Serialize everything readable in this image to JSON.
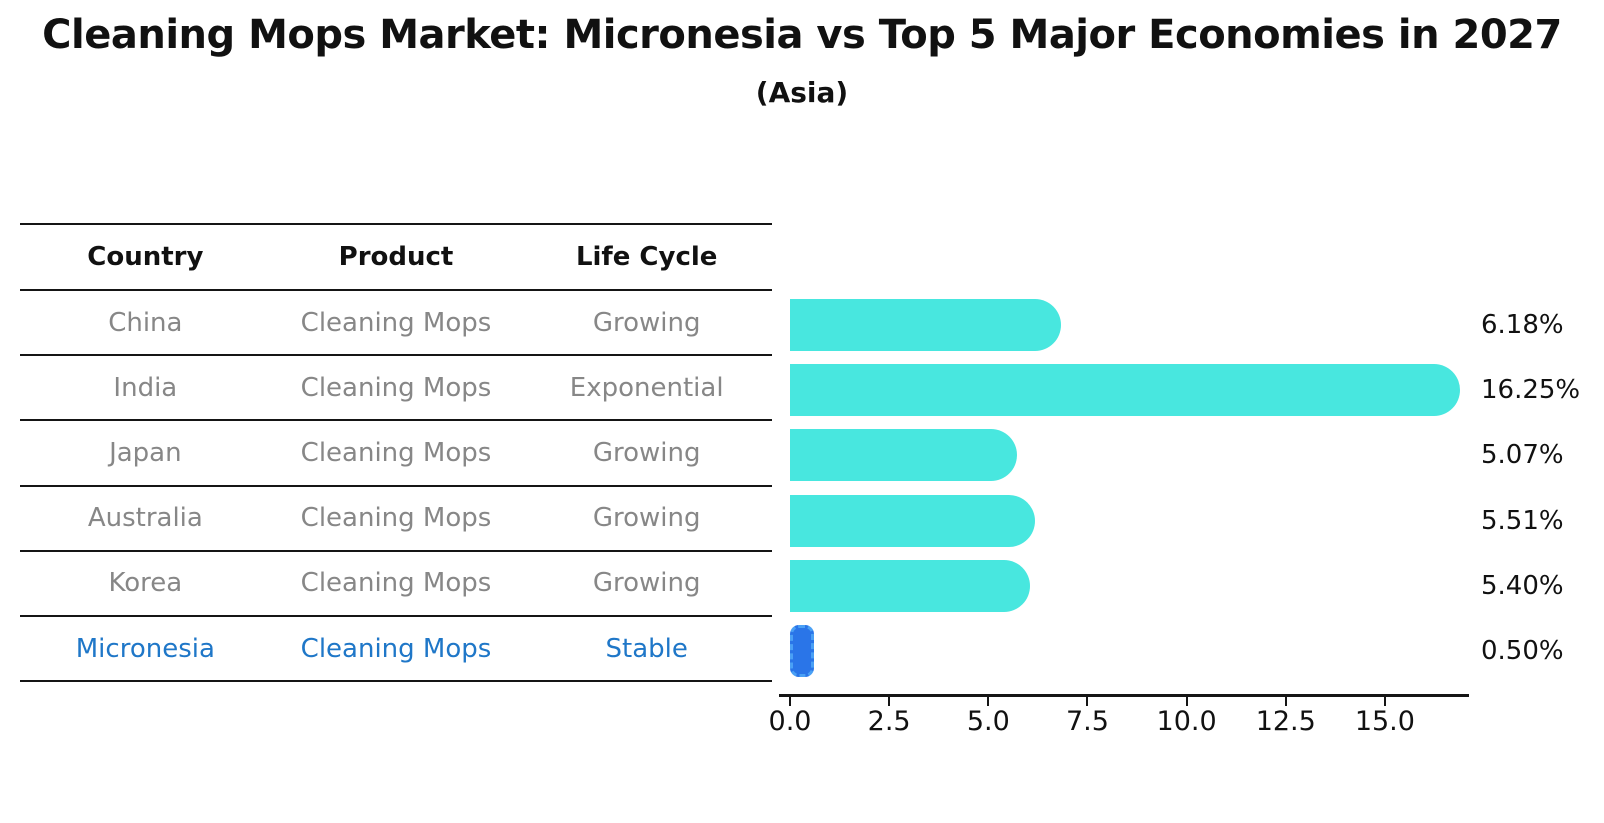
{
  "title": "Cleaning Mops Market: Micronesia vs Top 5 Major Economies in 2027",
  "subtitle": "(Asia)",
  "table": {
    "headers": [
      "Country",
      "Product",
      "Life Cycle"
    ],
    "rows": [
      {
        "country": "China",
        "product": "Cleaning Mops",
        "life_cycle": "Growing",
        "highlight": false
      },
      {
        "country": "India",
        "product": "Cleaning Mops",
        "life_cycle": "Exponential",
        "highlight": false
      },
      {
        "country": "Japan",
        "product": "Cleaning Mops",
        "life_cycle": "Growing",
        "highlight": false
      },
      {
        "country": "Australia",
        "product": "Cleaning Mops",
        "life_cycle": "Growing",
        "highlight": false
      },
      {
        "country": "Korea",
        "product": "Cleaning Mops",
        "life_cycle": "Growing",
        "highlight": false
      },
      {
        "country": "Micronesia",
        "product": "Cleaning Mops",
        "life_cycle": "Stable",
        "highlight": true
      }
    ]
  },
  "chart_data": {
    "type": "bar",
    "orientation": "horizontal",
    "title": "Cleaning Mops Market: Micronesia vs Top 5 Major Economies in 2027",
    "subtitle": "(Asia)",
    "categories": [
      "China",
      "India",
      "Japan",
      "Australia",
      "Korea",
      "Micronesia"
    ],
    "values": [
      6.18,
      16.25,
      5.07,
      5.51,
      5.4,
      0.5
    ],
    "value_labels": [
      "6.18%",
      "16.25%",
      "5.07%",
      "5.51%",
      "5.40%",
      "0.50%"
    ],
    "x_ticks": [
      "0.0",
      "2.5",
      "5.0",
      "7.5",
      "10.0",
      "12.5",
      "15.0"
    ],
    "xlim": [
      0,
      17.05
    ],
    "grid": false,
    "legend": "none",
    "xlabel": "",
    "ylabel": "",
    "colors": {
      "bar": "#48e7df",
      "highlight_fill": "#2a75e8",
      "highlight_dash": "#4aa0f5",
      "highlight_text": "#1f77c8",
      "axis": "#151515",
      "text": "#111111",
      "muted_text": "#878787"
    }
  }
}
